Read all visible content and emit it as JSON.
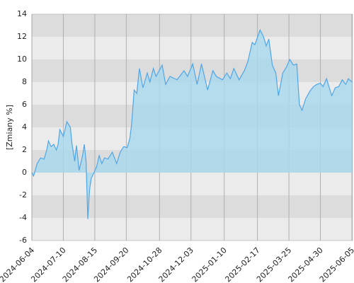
{
  "chart_data": {
    "type": "area",
    "y_label": "[Zmiany %]",
    "x": [
      "2024-06-04",
      "2024-06-06",
      "2024-06-10",
      "2024-06-14",
      "2024-06-18",
      "2024-06-21",
      "2024-06-23",
      "2024-06-26",
      "2024-06-29",
      "2024-07-02",
      "2024-07-04",
      "2024-07-06",
      "2024-07-10",
      "2024-07-14",
      "2024-07-18",
      "2024-07-20",
      "2024-07-23",
      "2024-07-25",
      "2024-07-28",
      "2024-08-01",
      "2024-08-03",
      "2024-08-05",
      "2024-08-07",
      "2024-08-09",
      "2024-08-11",
      "2024-08-14",
      "2024-08-17",
      "2024-08-20",
      "2024-08-23",
      "2024-08-26",
      "2024-08-30",
      "2024-09-04",
      "2024-09-09",
      "2024-09-13",
      "2024-09-17",
      "2024-09-21",
      "2024-09-24",
      "2024-09-26",
      "2024-09-29",
      "2024-10-02",
      "2024-10-05",
      "2024-10-09",
      "2024-10-14",
      "2024-10-17",
      "2024-10-21",
      "2024-10-24",
      "2024-10-31",
      "2024-11-04",
      "2024-11-09",
      "2024-11-17",
      "2024-11-25",
      "2024-11-29",
      "2024-12-05",
      "2024-12-10",
      "2024-12-15",
      "2024-12-22",
      "2024-12-28",
      "2025-01-01",
      "2025-01-08",
      "2025-01-13",
      "2025-01-17",
      "2025-01-21",
      "2025-01-27",
      "2025-02-02",
      "2025-02-06",
      "2025-02-11",
      "2025-02-14",
      "2025-02-20",
      "2025-02-24",
      "2025-02-27",
      "2025-03-02",
      "2025-03-06",
      "2025-03-10",
      "2025-03-13",
      "2025-03-18",
      "2025-03-22",
      "2025-03-26",
      "2025-03-30",
      "2025-04-03",
      "2025-04-06",
      "2025-04-09",
      "2025-04-13",
      "2025-04-18",
      "2025-04-22",
      "2025-04-26",
      "2025-04-30",
      "2025-05-03",
      "2025-05-07",
      "2025-05-13",
      "2025-05-17",
      "2025-05-21",
      "2025-05-25",
      "2025-05-29",
      "2025-06-01",
      "2025-06-05"
    ],
    "values": [
      0,
      -0.3,
      0.8,
      1.3,
      1.2,
      2,
      2.8,
      2.3,
      2.5,
      2,
      2.5,
      3.8,
      3.2,
      4.5,
      4,
      2.5,
      1,
      2.4,
      0.2,
      1.5,
      2.5,
      1,
      -4.1,
      -1.5,
      -0.5,
      0,
      0.5,
      1.5,
      0.8,
      1.3,
      1.2,
      1.8,
      0.8,
      1.8,
      2.3,
      2.2,
      3,
      4.2,
      7.3,
      7,
      9.2,
      7.5,
      8.8,
      8,
      9.2,
      8.5,
      9.5,
      7.8,
      8.5,
      8.2,
      9,
      8.5,
      9.6,
      7.8,
      9.6,
      7.3,
      9,
      8.5,
      8.2,
      8.8,
      8.3,
      9.2,
      8.2,
      9,
      9.8,
      11.5,
      11.3,
      12.6,
      12,
      11.2,
      11.8,
      9.5,
      8.8,
      6.8,
      8.8,
      9.3,
      10,
      9.5,
      9.6,
      6,
      5.5,
      6.5,
      7.2,
      7.6,
      7.8,
      7.9,
      7.6,
      8.3,
      6.8,
      7.5,
      7.6,
      8.2,
      7.8,
      8.3,
      8
    ],
    "line_color": "#4ea6e8",
    "fill_color": "#a8d8ee",
    "xlim": [
      "2024-06-04",
      "2025-06-05"
    ],
    "xticks": [
      "2024-06-04",
      "2024-07-10",
      "2024-08-15",
      "2024-09-20",
      "2024-10-28",
      "2024-12-03",
      "2025-01-10",
      "2025-02-17",
      "2025-03-25",
      "2025-04-30",
      "2025-06-05"
    ],
    "ylim": [
      -6,
      14
    ],
    "yticks": [
      -6,
      -4,
      -2,
      0,
      2,
      4,
      6,
      8,
      10,
      12,
      14
    ],
    "band_colors": [
      "#dcdcdc",
      "#ebebeb"
    ],
    "grid": true
  }
}
